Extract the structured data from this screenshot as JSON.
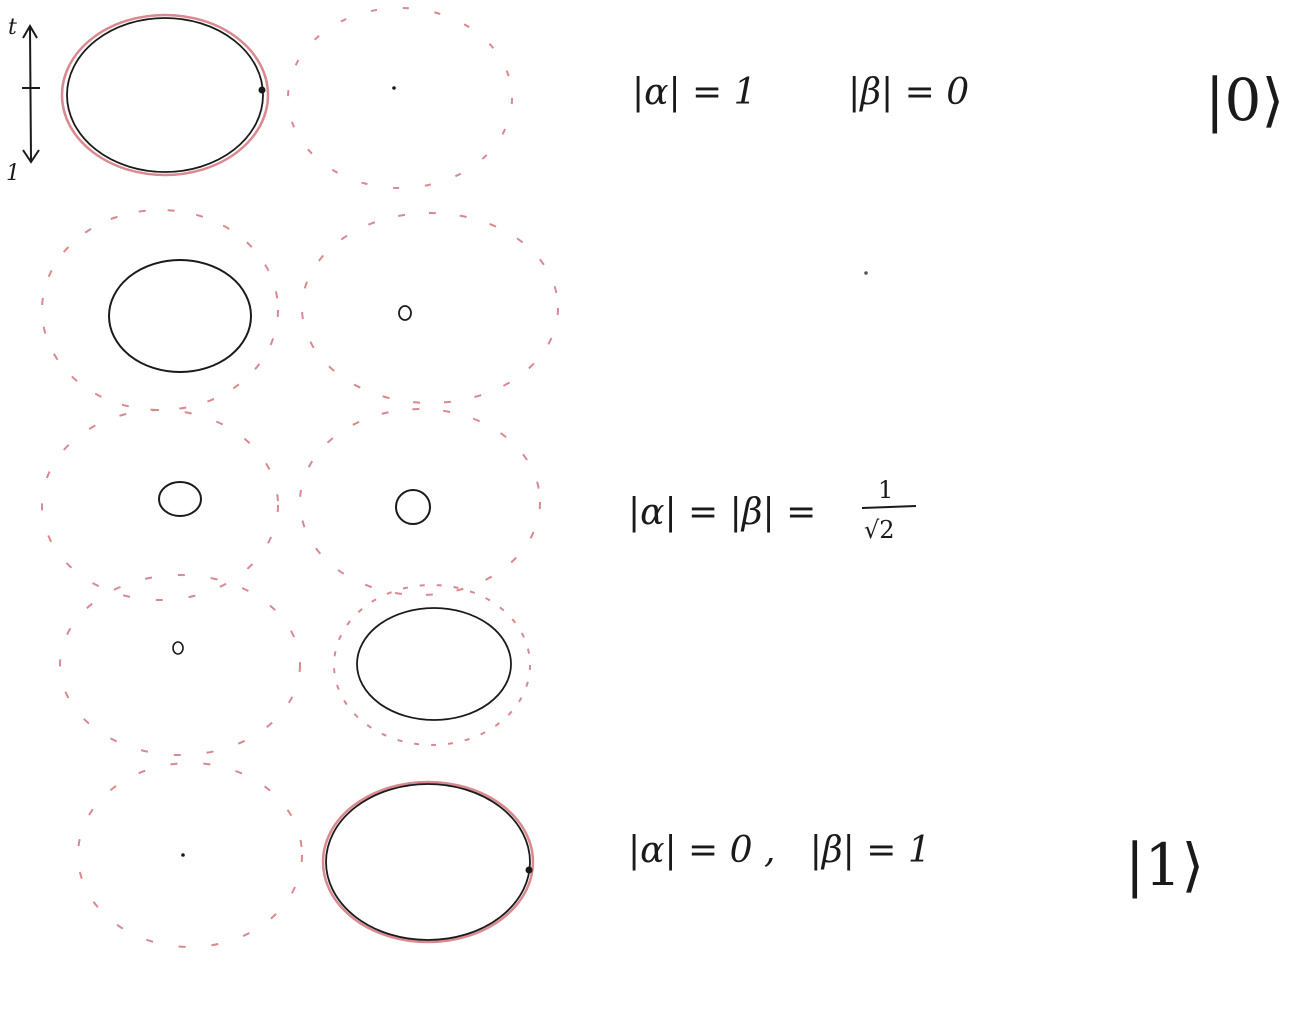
{
  "time_axis": {
    "top_label": "t",
    "bottom_label": "1"
  },
  "rows": [
    {
      "equation": "|α| = 1        |β| = 0",
      "ket": "|0⟩"
    },
    {
      "equation": "",
      "ket": ""
    },
    {
      "equation": "|α| = |β| =",
      "fraction_num": "1",
      "fraction_den": "√2",
      "ket": ""
    },
    {
      "equation": "",
      "ket": ""
    },
    {
      "equation": "|α| = 0 ,   |β| = 1",
      "ket": "|1⟩"
    }
  ],
  "colors": {
    "ink": "#1a1a1a",
    "pencil_red": "#d9898f"
  }
}
